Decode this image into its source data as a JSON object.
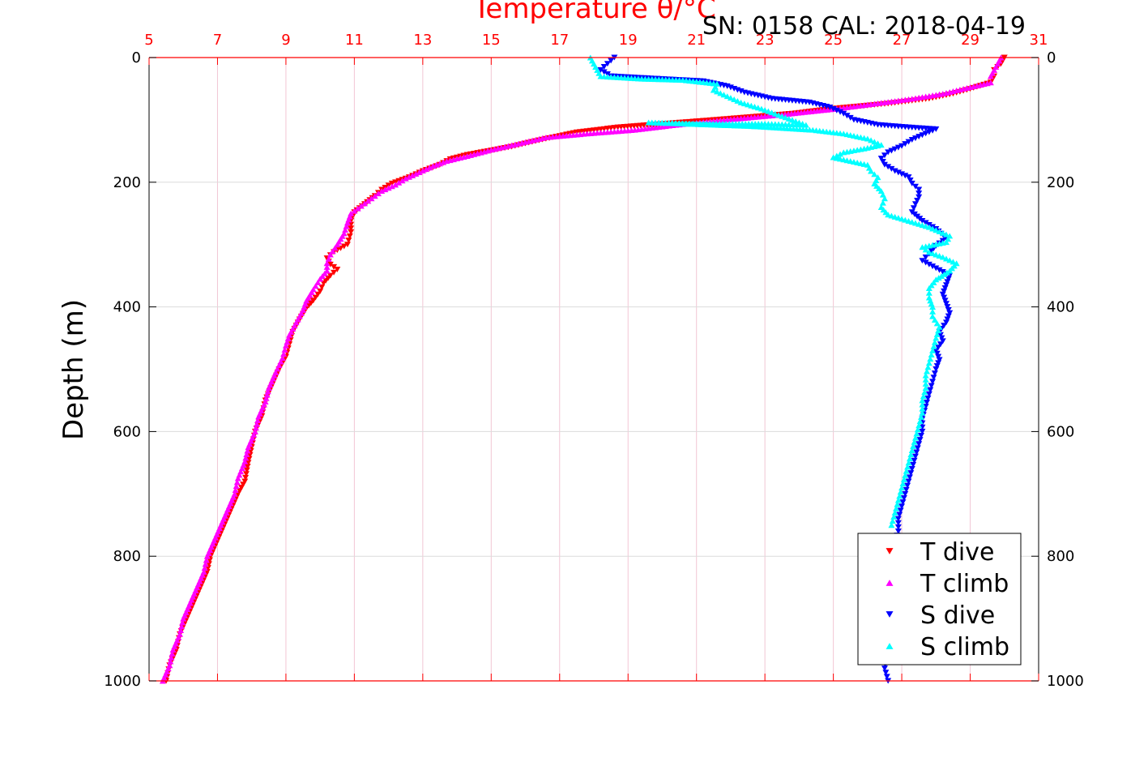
{
  "chart_data": {
    "type": "scatter",
    "title": "Temperature θ/°C",
    "subtitle": "SN: 0158  CAL: 2018-04-19",
    "xlabel": "Temperature θ/°C",
    "ylabel": "Depth (m)",
    "xlim": [
      5,
      31
    ],
    "ylim": [
      1000,
      0
    ],
    "y_inverted": true,
    "grid": true,
    "x_ticks": [
      "5",
      "7",
      "9",
      "11",
      "13",
      "15",
      "17",
      "19",
      "21",
      "23",
      "25",
      "27",
      "29",
      "31"
    ],
    "x_tick_values": [
      5,
      7,
      9,
      11,
      13,
      15,
      17,
      19,
      21,
      23,
      25,
      27,
      29,
      31
    ],
    "y_ticks": [
      "0",
      "200",
      "400",
      "600",
      "800",
      "1000"
    ],
    "y_tick_values": [
      0,
      200,
      400,
      600,
      800,
      1000
    ],
    "legend_position": "bottom-right",
    "colors": {
      "title": "#ff0000",
      "top_axis": "#ff0000",
      "grid_x": "#f2c6d4",
      "grid_y": "#dcdcdc"
    },
    "series": [
      {
        "name": "T dive",
        "marker": "triangle-down",
        "color": "#ff0000",
        "points": [
          [
            30.0,
            0
          ],
          [
            29.9,
            10
          ],
          [
            29.7,
            20
          ],
          [
            29.7,
            30
          ],
          [
            29.6,
            40
          ],
          [
            28.9,
            52
          ],
          [
            28.5,
            58
          ],
          [
            27.8,
            66
          ],
          [
            26.6,
            74
          ],
          [
            25.0,
            82
          ],
          [
            23.8,
            90
          ],
          [
            22.0,
            98
          ],
          [
            20.6,
            104
          ],
          [
            18.7,
            112
          ],
          [
            17.5,
            120
          ],
          [
            16.8,
            128
          ],
          [
            16.3,
            134
          ],
          [
            15.6,
            143
          ],
          [
            14.9,
            150
          ],
          [
            14.3,
            156
          ],
          [
            13.8,
            163
          ],
          [
            13.5,
            172
          ],
          [
            13.0,
            182
          ],
          [
            12.6,
            192
          ],
          [
            12.1,
            202
          ],
          [
            11.8,
            212
          ],
          [
            11.6,
            222
          ],
          [
            11.3,
            235
          ],
          [
            11.0,
            248
          ],
          [
            10.9,
            262
          ],
          [
            10.9,
            280
          ],
          [
            10.8,
            300
          ],
          [
            10.4,
            312
          ],
          [
            10.2,
            322
          ],
          [
            10.3,
            332
          ],
          [
            10.5,
            340
          ],
          [
            10.3,
            350
          ],
          [
            10.1,
            362
          ],
          [
            10.0,
            375
          ],
          [
            9.8,
            390
          ],
          [
            9.6,
            402
          ],
          [
            9.4,
            420
          ],
          [
            9.2,
            440
          ],
          [
            9.1,
            460
          ],
          [
            9.0,
            480
          ],
          [
            8.8,
            500
          ],
          [
            8.6,
            525
          ],
          [
            8.4,
            550
          ],
          [
            8.3,
            575
          ],
          [
            8.1,
            600
          ],
          [
            8.0,
            625
          ],
          [
            7.9,
            650
          ],
          [
            7.8,
            680
          ],
          [
            7.6,
            700
          ],
          [
            7.4,
            725
          ],
          [
            7.2,
            750
          ],
          [
            7.0,
            775
          ],
          [
            6.8,
            800
          ],
          [
            6.7,
            825
          ],
          [
            6.5,
            850
          ],
          [
            6.3,
            875
          ],
          [
            6.1,
            900
          ],
          [
            5.9,
            925
          ],
          [
            5.8,
            950
          ],
          [
            5.6,
            975
          ],
          [
            5.5,
            1000
          ]
        ]
      },
      {
        "name": "T climb",
        "marker": "triangle-up",
        "color": "#ff00ff",
        "points": [
          [
            29.9,
            0
          ],
          [
            29.8,
            10
          ],
          [
            29.7,
            20
          ],
          [
            29.6,
            30
          ],
          [
            29.6,
            40
          ],
          [
            28.8,
            50
          ],
          [
            28.2,
            58
          ],
          [
            27.3,
            66
          ],
          [
            26.2,
            74
          ],
          [
            25.1,
            82
          ],
          [
            23.4,
            92
          ],
          [
            21.8,
            100
          ],
          [
            20.4,
            108
          ],
          [
            19.2,
            116
          ],
          [
            17.8,
            122
          ],
          [
            16.6,
            128
          ],
          [
            15.8,
            138
          ],
          [
            15.0,
            148
          ],
          [
            14.3,
            158
          ],
          [
            13.7,
            166
          ],
          [
            13.3,
            174
          ],
          [
            12.9,
            184
          ],
          [
            12.5,
            194
          ],
          [
            12.2,
            204
          ],
          [
            11.8,
            214
          ],
          [
            11.5,
            226
          ],
          [
            11.2,
            238
          ],
          [
            10.9,
            250
          ],
          [
            10.8,
            265
          ],
          [
            10.7,
            282
          ],
          [
            10.5,
            300
          ],
          [
            10.3,
            316
          ],
          [
            10.2,
            330
          ],
          [
            10.2,
            342
          ],
          [
            10.0,
            355
          ],
          [
            9.8,
            372
          ],
          [
            9.6,
            390
          ],
          [
            9.5,
            405
          ],
          [
            9.3,
            425
          ],
          [
            9.1,
            445
          ],
          [
            9.0,
            462
          ],
          [
            8.9,
            482
          ],
          [
            8.7,
            505
          ],
          [
            8.5,
            530
          ],
          [
            8.4,
            552
          ],
          [
            8.2,
            576
          ],
          [
            8.1,
            600
          ],
          [
            7.9,
            625
          ],
          [
            7.8,
            648
          ],
          [
            7.6,
            675
          ],
          [
            7.5,
            700
          ],
          [
            7.3,
            725
          ],
          [
            7.1,
            750
          ],
          [
            6.9,
            775
          ],
          [
            6.7,
            800
          ],
          [
            6.6,
            825
          ],
          [
            6.4,
            850
          ],
          [
            6.2,
            875
          ],
          [
            6.0,
            900
          ],
          [
            5.9,
            925
          ],
          [
            5.7,
            950
          ],
          [
            5.6,
            975
          ],
          [
            5.4,
            1000
          ]
        ]
      },
      {
        "name": "S dive",
        "marker": "triangle-down",
        "color": "#0000ff",
        "points": [
          [
            18.6,
            0
          ],
          [
            18.4,
            10
          ],
          [
            18.2,
            20
          ],
          [
            18.5,
            30
          ],
          [
            21.2,
            38
          ],
          [
            21.9,
            46
          ],
          [
            22.4,
            56
          ],
          [
            23.2,
            66
          ],
          [
            24.3,
            72
          ],
          [
            24.9,
            80
          ],
          [
            25.3,
            90
          ],
          [
            25.6,
            100
          ],
          [
            26.3,
            108
          ],
          [
            27.2,
            112
          ],
          [
            28.0,
            115
          ],
          [
            27.7,
            122
          ],
          [
            27.3,
            132
          ],
          [
            27.0,
            142
          ],
          [
            26.6,
            152
          ],
          [
            26.4,
            162
          ],
          [
            26.5,
            172
          ],
          [
            26.8,
            182
          ],
          [
            27.2,
            192
          ],
          [
            27.3,
            202
          ],
          [
            27.5,
            212
          ],
          [
            27.5,
            224
          ],
          [
            27.4,
            235
          ],
          [
            27.3,
            248
          ],
          [
            27.6,
            262
          ],
          [
            28.0,
            275
          ],
          [
            28.3,
            290
          ],
          [
            28.0,
            302
          ],
          [
            27.8,
            315
          ],
          [
            27.6,
            326
          ],
          [
            28.0,
            338
          ],
          [
            28.4,
            350
          ],
          [
            28.3,
            365
          ],
          [
            28.2,
            380
          ],
          [
            28.3,
            395
          ],
          [
            28.4,
            410
          ],
          [
            28.3,
            425
          ],
          [
            28.1,
            440
          ],
          [
            28.2,
            455
          ],
          [
            28.0,
            470
          ],
          [
            28.1,
            485
          ],
          [
            28.0,
            500
          ],
          [
            27.9,
            520
          ],
          [
            27.8,
            540
          ],
          [
            27.7,
            560
          ],
          [
            27.6,
            580
          ],
          [
            27.6,
            600
          ],
          [
            27.5,
            620
          ],
          [
            27.4,
            640
          ],
          [
            27.3,
            660
          ],
          [
            27.2,
            680
          ],
          [
            27.1,
            700
          ],
          [
            27.0,
            720
          ],
          [
            26.9,
            740
          ],
          [
            26.9,
            760
          ],
          [
            26.8,
            780
          ],
          [
            26.8,
            800
          ],
          [
            26.7,
            830
          ],
          [
            26.7,
            860
          ],
          [
            26.6,
            890
          ],
          [
            26.6,
            920
          ],
          [
            26.6,
            950
          ],
          [
            26.5,
            980
          ],
          [
            26.6,
            1000
          ]
        ]
      },
      {
        "name": "S climb",
        "marker": "triangle-up",
        "color": "#00ffff",
        "points": [
          [
            17.9,
            0
          ],
          [
            18.0,
            10
          ],
          [
            18.1,
            20
          ],
          [
            18.2,
            30
          ],
          [
            19.4,
            34
          ],
          [
            20.6,
            36
          ],
          [
            21.6,
            42
          ],
          [
            21.5,
            52
          ],
          [
            21.9,
            62
          ],
          [
            22.3,
            72
          ],
          [
            22.9,
            82
          ],
          [
            23.4,
            92
          ],
          [
            23.8,
            100
          ],
          [
            24.2,
            108
          ],
          [
            23.0,
            106
          ],
          [
            21.2,
            106
          ],
          [
            19.6,
            104
          ],
          [
            22.6,
            110
          ],
          [
            24.4,
            116
          ],
          [
            25.3,
            122
          ],
          [
            26.0,
            130
          ],
          [
            26.4,
            140
          ],
          [
            25.9,
            146
          ],
          [
            25.3,
            152
          ],
          [
            25.0,
            160
          ],
          [
            25.5,
            166
          ],
          [
            26.0,
            172
          ],
          [
            26.1,
            182
          ],
          [
            26.3,
            192
          ],
          [
            26.2,
            202
          ],
          [
            26.4,
            214
          ],
          [
            26.5,
            226
          ],
          [
            26.4,
            240
          ],
          [
            26.6,
            252
          ],
          [
            27.2,
            262
          ],
          [
            27.8,
            272
          ],
          [
            28.4,
            286
          ],
          [
            28.3,
            296
          ],
          [
            27.6,
            304
          ],
          [
            27.8,
            312
          ],
          [
            28.2,
            320
          ],
          [
            28.6,
            330
          ],
          [
            28.4,
            342
          ],
          [
            28.0,
            356
          ],
          [
            27.8,
            370
          ],
          [
            27.8,
            385
          ],
          [
            27.9,
            400
          ],
          [
            27.9,
            415
          ],
          [
            28.1,
            432
          ],
          [
            28.0,
            450
          ],
          [
            27.9,
            470
          ],
          [
            27.8,
            490
          ],
          [
            27.7,
            510
          ],
          [
            27.7,
            530
          ],
          [
            27.6,
            550
          ],
          [
            27.6,
            570
          ],
          [
            27.5,
            590
          ],
          [
            27.4,
            610
          ],
          [
            27.3,
            630
          ],
          [
            27.2,
            650
          ],
          [
            27.1,
            670
          ],
          [
            27.0,
            690
          ],
          [
            26.9,
            710
          ],
          [
            26.8,
            730
          ],
          [
            26.7,
            750
          ]
        ]
      }
    ]
  }
}
